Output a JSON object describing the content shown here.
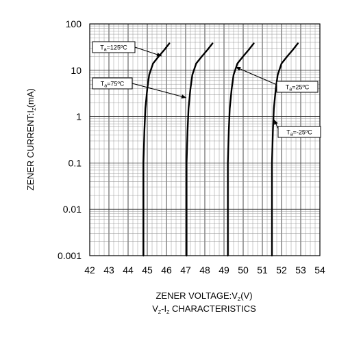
{
  "chart_data": {
    "type": "line",
    "title": "",
    "xlabel": {
      "main": "ZENER VOLTAGE:V",
      "sub": "Z",
      "unit": "(V)"
    },
    "ylabel": {
      "main": "ZENER CURRENT:I",
      "sub": "Z",
      "unit": "(mA)"
    },
    "caption": {
      "p1": "V",
      "s1": "Z",
      "p2": "-I",
      "s2": "Z",
      "p3": " CHARACTERISTICS"
    },
    "xlim": [
      42,
      54
    ],
    "ylim": [
      0.001,
      100
    ],
    "yscale": "log",
    "grid": true,
    "x_ticks": [
      "42",
      "43",
      "44",
      "45",
      "46",
      "47",
      "48",
      "49",
      "50",
      "51",
      "52",
      "53",
      "54"
    ],
    "y_ticks": [
      {
        "value": 100,
        "label": "100"
      },
      {
        "value": 10,
        "label": "10"
      },
      {
        "value": 1,
        "label": "1"
      },
      {
        "value": 0.1,
        "label": "0.1"
      },
      {
        "value": 0.01,
        "label": "0.01"
      },
      {
        "value": 0.001,
        "label": "0.001"
      }
    ],
    "series": [
      {
        "name": "Ta=125ºC",
        "label": {
          "pre": "T",
          "sub": "a",
          "post": "=125ºC"
        },
        "x": [
          44.8,
          44.8,
          44.85,
          44.9,
          45.0,
          45.1,
          45.3,
          45.6,
          45.9,
          46.15
        ],
        "y": [
          0.001,
          0.1,
          0.5,
          1.5,
          4,
          8,
          14,
          20,
          28,
          38
        ]
      },
      {
        "name": "Ta=75ºC",
        "label": {
          "pre": "T",
          "sub": "a",
          "post": "=75ºC"
        },
        "x": [
          47.05,
          47.05,
          47.1,
          47.15,
          47.25,
          47.35,
          47.55,
          47.85,
          48.15,
          48.4
        ],
        "y": [
          0.001,
          0.1,
          0.5,
          1.5,
          4,
          8,
          14,
          20,
          28,
          38
        ]
      },
      {
        "name": "Ta=25ºC",
        "label": {
          "pre": "T",
          "sub": "a",
          "post": "=25ºC"
        },
        "x": [
          49.2,
          49.2,
          49.25,
          49.3,
          49.4,
          49.5,
          49.7,
          50.0,
          50.3,
          50.55
        ],
        "y": [
          0.001,
          0.1,
          0.5,
          1.5,
          4,
          8,
          14,
          20,
          28,
          38
        ]
      },
      {
        "name": "Ta=-25ºC",
        "label": {
          "pre": "T",
          "sub": "a",
          "post": "=-25ºC"
        },
        "x": [
          51.5,
          51.5,
          51.55,
          51.6,
          51.7,
          51.8,
          52.0,
          52.3,
          52.6,
          52.85
        ],
        "y": [
          0.001,
          0.1,
          0.5,
          1.5,
          4,
          8,
          14,
          20,
          28,
          38
        ]
      }
    ]
  }
}
